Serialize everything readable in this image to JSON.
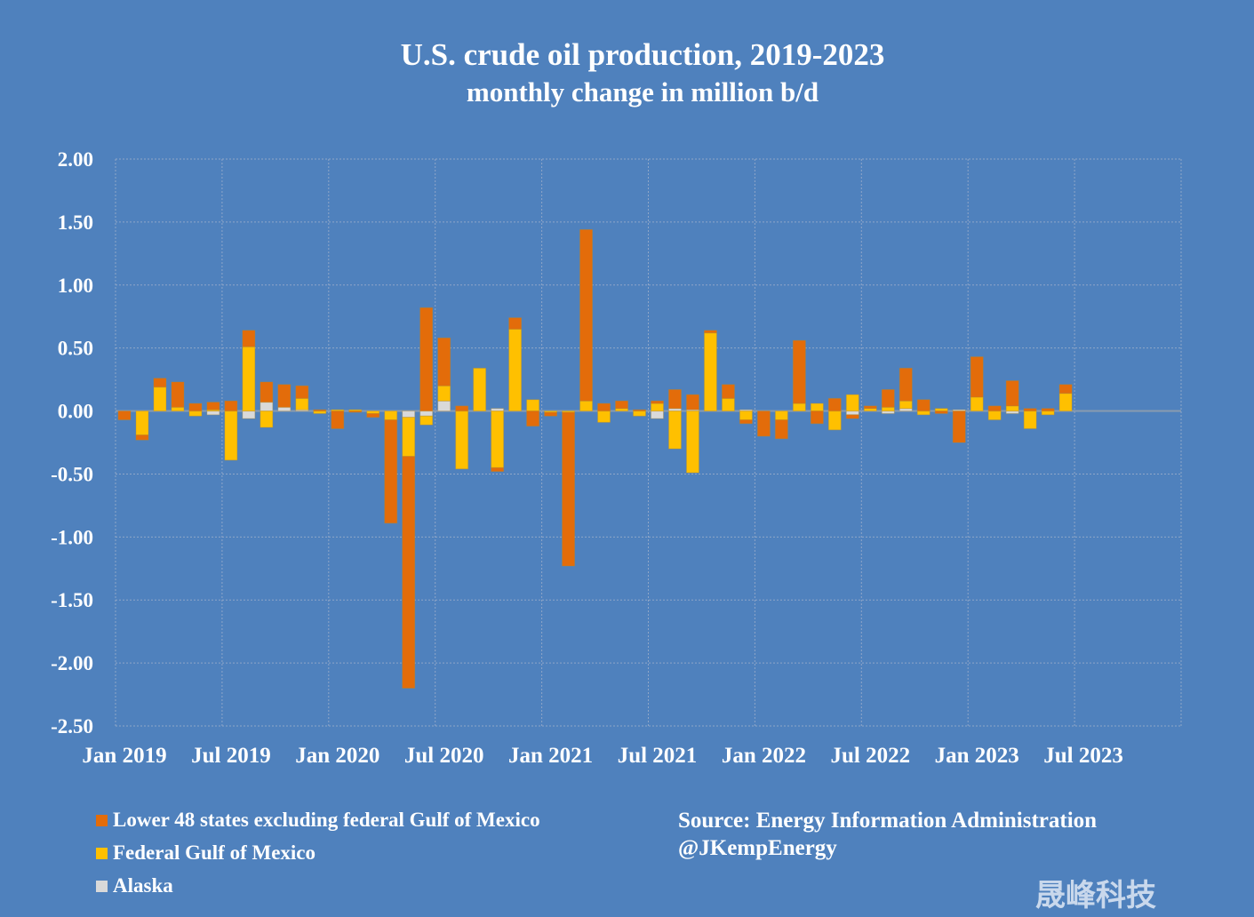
{
  "chart_data": {
    "type": "bar",
    "stacked": true,
    "title": "U.S. crude oil production, 2019-2023",
    "subtitle": "monthly change in million b/d",
    "xlabel": "",
    "ylabel": "",
    "ylim": [
      -2.5,
      2.0
    ],
    "yticks": [
      "2.00",
      "1.50",
      "1.00",
      "0.50",
      "0.00",
      "-0.50",
      "-1.00",
      "-1.50",
      "-2.00",
      "-2.50"
    ],
    "ytick_values": [
      2.0,
      1.5,
      1.0,
      0.5,
      0.0,
      -0.5,
      -1.0,
      -1.5,
      -2.0,
      -2.5
    ],
    "xticks": [
      "Jan 2019",
      "Jul 2019",
      "Jan 2020",
      "Jul 2020",
      "Jan 2021",
      "Jul 2021",
      "Jan 2022",
      "Jul 2022",
      "Jan 2023",
      "Jul 2023"
    ],
    "x_range": [
      "Jan 2019",
      "Dec 2023"
    ],
    "categories": [
      "Jan 2019",
      "Feb 2019",
      "Mar 2019",
      "Apr 2019",
      "May 2019",
      "Jun 2019",
      "Jul 2019",
      "Aug 2019",
      "Sep 2019",
      "Oct 2019",
      "Nov 2019",
      "Dec 2019",
      "Jan 2020",
      "Feb 2020",
      "Mar 2020",
      "Apr 2020",
      "May 2020",
      "Jun 2020",
      "Jul 2020",
      "Aug 2020",
      "Sep 2020",
      "Oct 2020",
      "Nov 2020",
      "Dec 2020",
      "Jan 2021",
      "Feb 2021",
      "Mar 2021",
      "Apr 2021",
      "May 2021",
      "Jun 2021",
      "Jul 2021",
      "Aug 2021",
      "Sep 2021",
      "Oct 2021",
      "Nov 2021",
      "Dec 2021",
      "Jan 2022",
      "Feb 2022",
      "Mar 2022",
      "Apr 2022",
      "May 2022",
      "Jun 2022",
      "Jul 2022",
      "Aug 2022",
      "Sep 2022",
      "Oct 2022",
      "Nov 2022",
      "Dec 2022",
      "Jan 2023",
      "Feb 2023",
      "Mar 2023",
      "Apr 2023",
      "May 2023",
      "Jun 2023"
    ],
    "grid": true,
    "legend_position": "bottom-left",
    "series": [
      {
        "name": "Alaska",
        "color": "#d9d9d9",
        "values": [
          0,
          0,
          0,
          0,
          0,
          -0.03,
          0,
          -0.06,
          0.07,
          0.03,
          0.01,
          0,
          0,
          0,
          0,
          0,
          -0.05,
          -0.04,
          0.08,
          0,
          0,
          0.02,
          0,
          0,
          0,
          0,
          0,
          0,
          0,
          0,
          -0.06,
          0.02,
          0.01,
          0,
          0,
          0.01,
          0,
          0,
          0,
          0,
          0,
          -0.03,
          0,
          -0.02,
          0.02,
          0,
          0,
          0.01,
          0,
          0,
          -0.02,
          0,
          0,
          0
        ]
      },
      {
        "name": "Federal Gulf of Mexico",
        "color": "#ffc000",
        "values": [
          0,
          -0.19,
          0.19,
          0.03,
          -0.04,
          0.01,
          -0.39,
          0.51,
          -0.13,
          0,
          0.09,
          -0.02,
          0.01,
          0.01,
          -0.02,
          -0.07,
          -0.31,
          -0.07,
          0.12,
          -0.46,
          0.34,
          -0.45,
          0.65,
          0.09,
          -0.01,
          -0.01,
          0.08,
          -0.09,
          0.02,
          -0.04,
          0.06,
          -0.3,
          -0.49,
          0.62,
          0.1,
          -0.07,
          0,
          -0.07,
          0.06,
          0.06,
          -0.15,
          0.13,
          0.02,
          0.03,
          0.06,
          -0.03,
          0.02,
          0,
          0.11,
          -0.07,
          0.04,
          -0.14,
          -0.03,
          0.14
        ]
      },
      {
        "name": "Lower 48 states excluding federal Gulf of Mexico",
        "color": "#e36c0a",
        "values": [
          -0.07,
          -0.04,
          0.07,
          0.2,
          0.06,
          0.06,
          0.08,
          0.13,
          0.16,
          0.18,
          0.1,
          0.01,
          -0.14,
          -0.01,
          -0.03,
          -0.82,
          -1.84,
          0.82,
          0.38,
          0.04,
          0,
          -0.03,
          0.09,
          -0.12,
          -0.03,
          -1.22,
          1.36,
          0.06,
          0.06,
          0.01,
          0.02,
          0.15,
          0.12,
          0.02,
          0.11,
          -0.03,
          -0.2,
          -0.15,
          0.5,
          -0.1,
          0.1,
          -0.03,
          0.02,
          0.14,
          0.26,
          0.09,
          -0.02,
          -0.25,
          0.32,
          0.04,
          0.2,
          0.02,
          0.02,
          0.07
        ]
      }
    ]
  },
  "legend": {
    "items": [
      {
        "label": "Lower 48 states excluding federal Gulf of Mexico",
        "color": "#e36c0a"
      },
      {
        "label": "Federal Gulf of Mexico",
        "color": "#ffc000"
      },
      {
        "label": "Alaska",
        "color": "#d9d9d9"
      }
    ]
  },
  "source": {
    "line1": "Source:  Energy Information Administration",
    "line2": "@JKempEnergy"
  },
  "watermark": "晟峰科技"
}
